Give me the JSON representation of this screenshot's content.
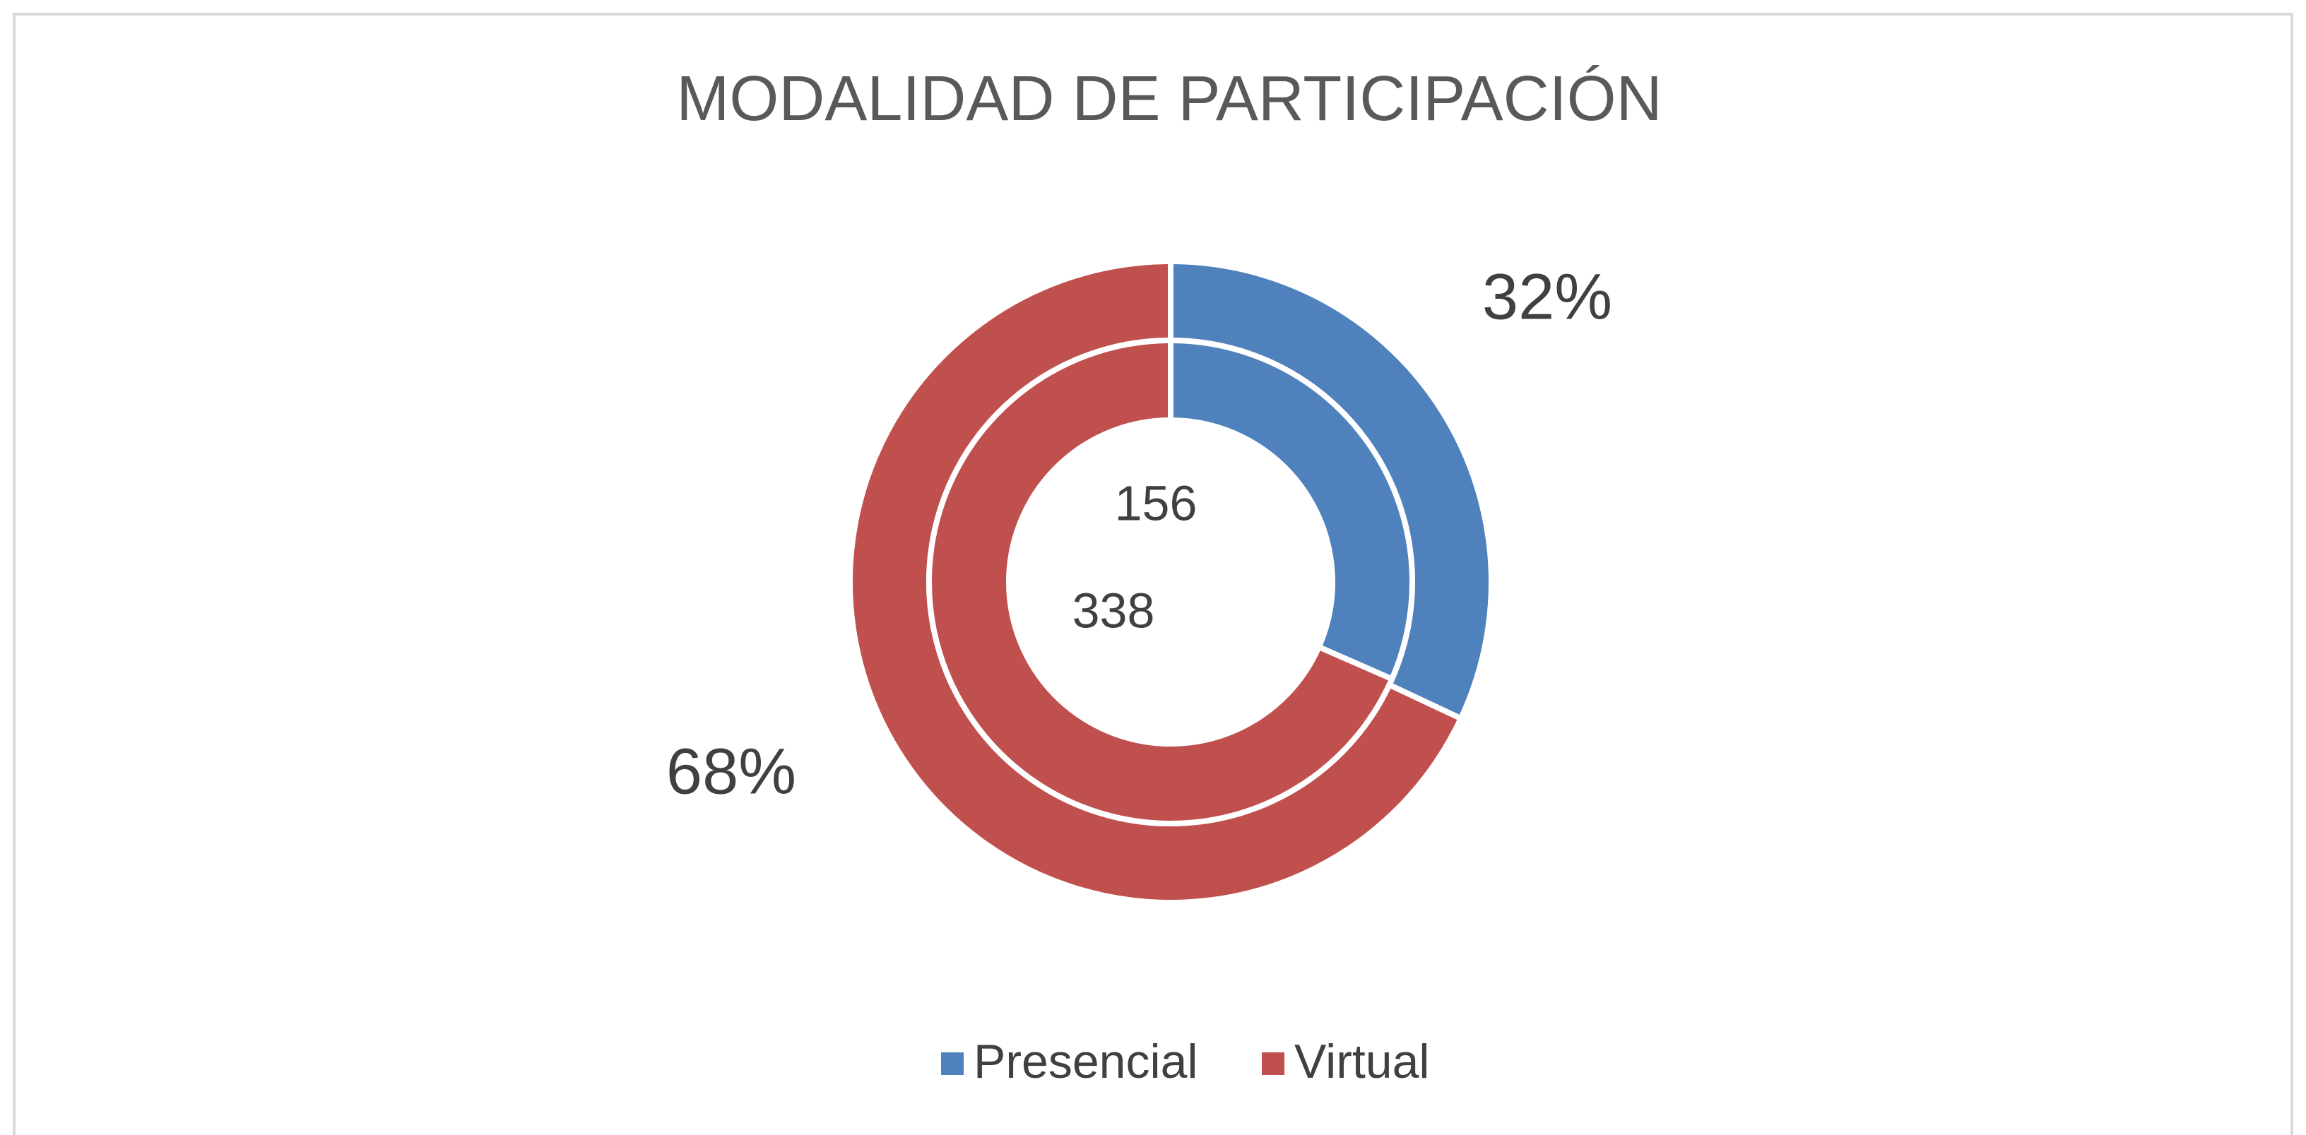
{
  "chart_data": {
    "type": "donut",
    "title": "MODALIDAD DE PARTICIPACIÓN",
    "categories": [
      "Presencial",
      "Virtual"
    ],
    "colors": [
      "#4f81bd",
      "#c0504d"
    ],
    "rings": [
      {
        "values": [
          32,
          68
        ],
        "value_labels": [
          "32%",
          "68%"
        ]
      },
      {
        "values": [
          156,
          338
        ]
      }
    ],
    "legend": "bottom"
  }
}
